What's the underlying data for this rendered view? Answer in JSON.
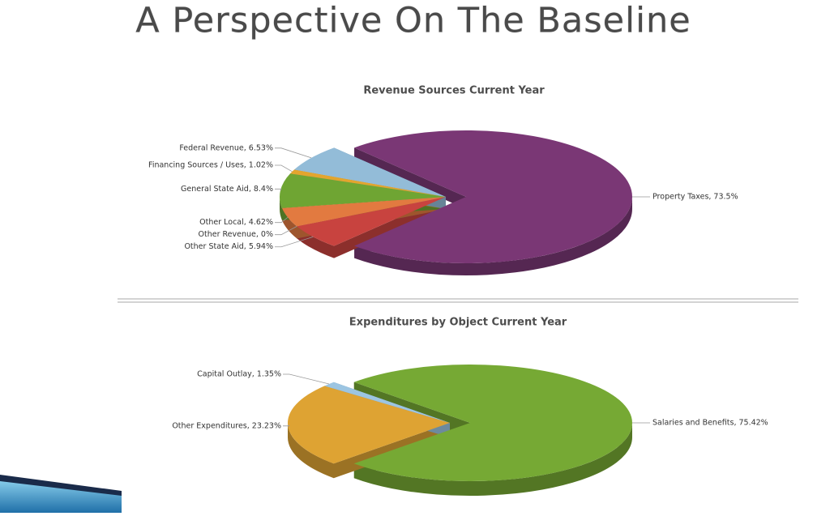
{
  "title": "A Perspective On The Baseline",
  "chart_data": [
    {
      "type": "pie",
      "title": "Revenue Sources Current Year",
      "values": [
        73.5,
        5.94,
        0,
        4.62,
        8.4,
        1.02,
        6.53
      ],
      "value_labels": [
        "Property Taxes, 73.5%",
        "Other State Aid, 5.94%",
        "Other Revenue, 0%",
        "Other Local, 4.62%",
        "General State Aid, 8.4%",
        "Financing Sources / Uses, 1.02%",
        "Federal Revenue, 6.53%"
      ],
      "colors": [
        "#7a3775",
        "#c8433f",
        "#8a8a8a",
        "#e27a40",
        "#6fa533",
        "#e3a52e",
        "#93bcd8"
      ]
    },
    {
      "type": "pie",
      "title": "Expenditures by Object Current Year",
      "values": [
        75.42,
        23.23,
        1.35
      ],
      "value_labels": [
        "Salaries and Benefits, 75.42%",
        "Other Expenditures, 23.23%",
        "Capital Outlay, 1.35%"
      ],
      "colors": [
        "#76a934",
        "#dea333",
        "#9cc5e2"
      ]
    }
  ]
}
